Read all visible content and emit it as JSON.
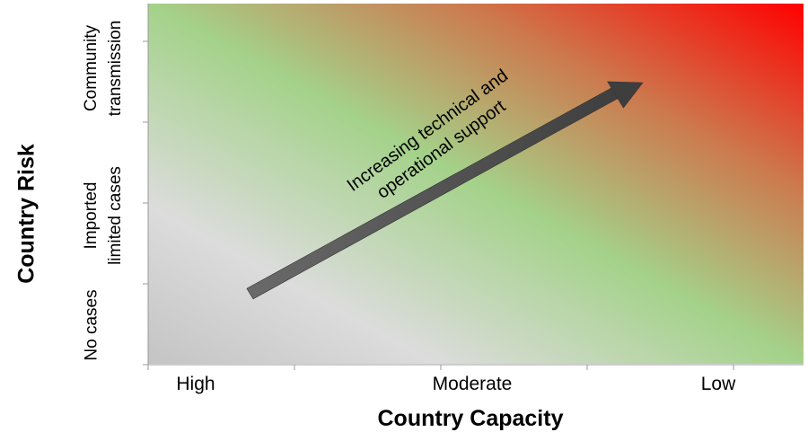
{
  "x_axis": {
    "title": "Country Capacity",
    "labels": [
      "High",
      "Moderate",
      "Low"
    ]
  },
  "y_axis": {
    "title": "Country Risk",
    "labels": [
      {
        "line1": "No cases",
        "line2": ""
      },
      {
        "line1": "Imported",
        "line2": "limited cases"
      },
      {
        "line1": "Community",
        "line2": "transmission"
      }
    ]
  },
  "arrow": {
    "line1": "Increasing technical and",
    "line2": "operational support"
  },
  "colors": {
    "low_risk": "#c4c4c4",
    "middle": "#a4d28a",
    "high_risk": "#ff0000",
    "arrow": "#555555"
  }
}
